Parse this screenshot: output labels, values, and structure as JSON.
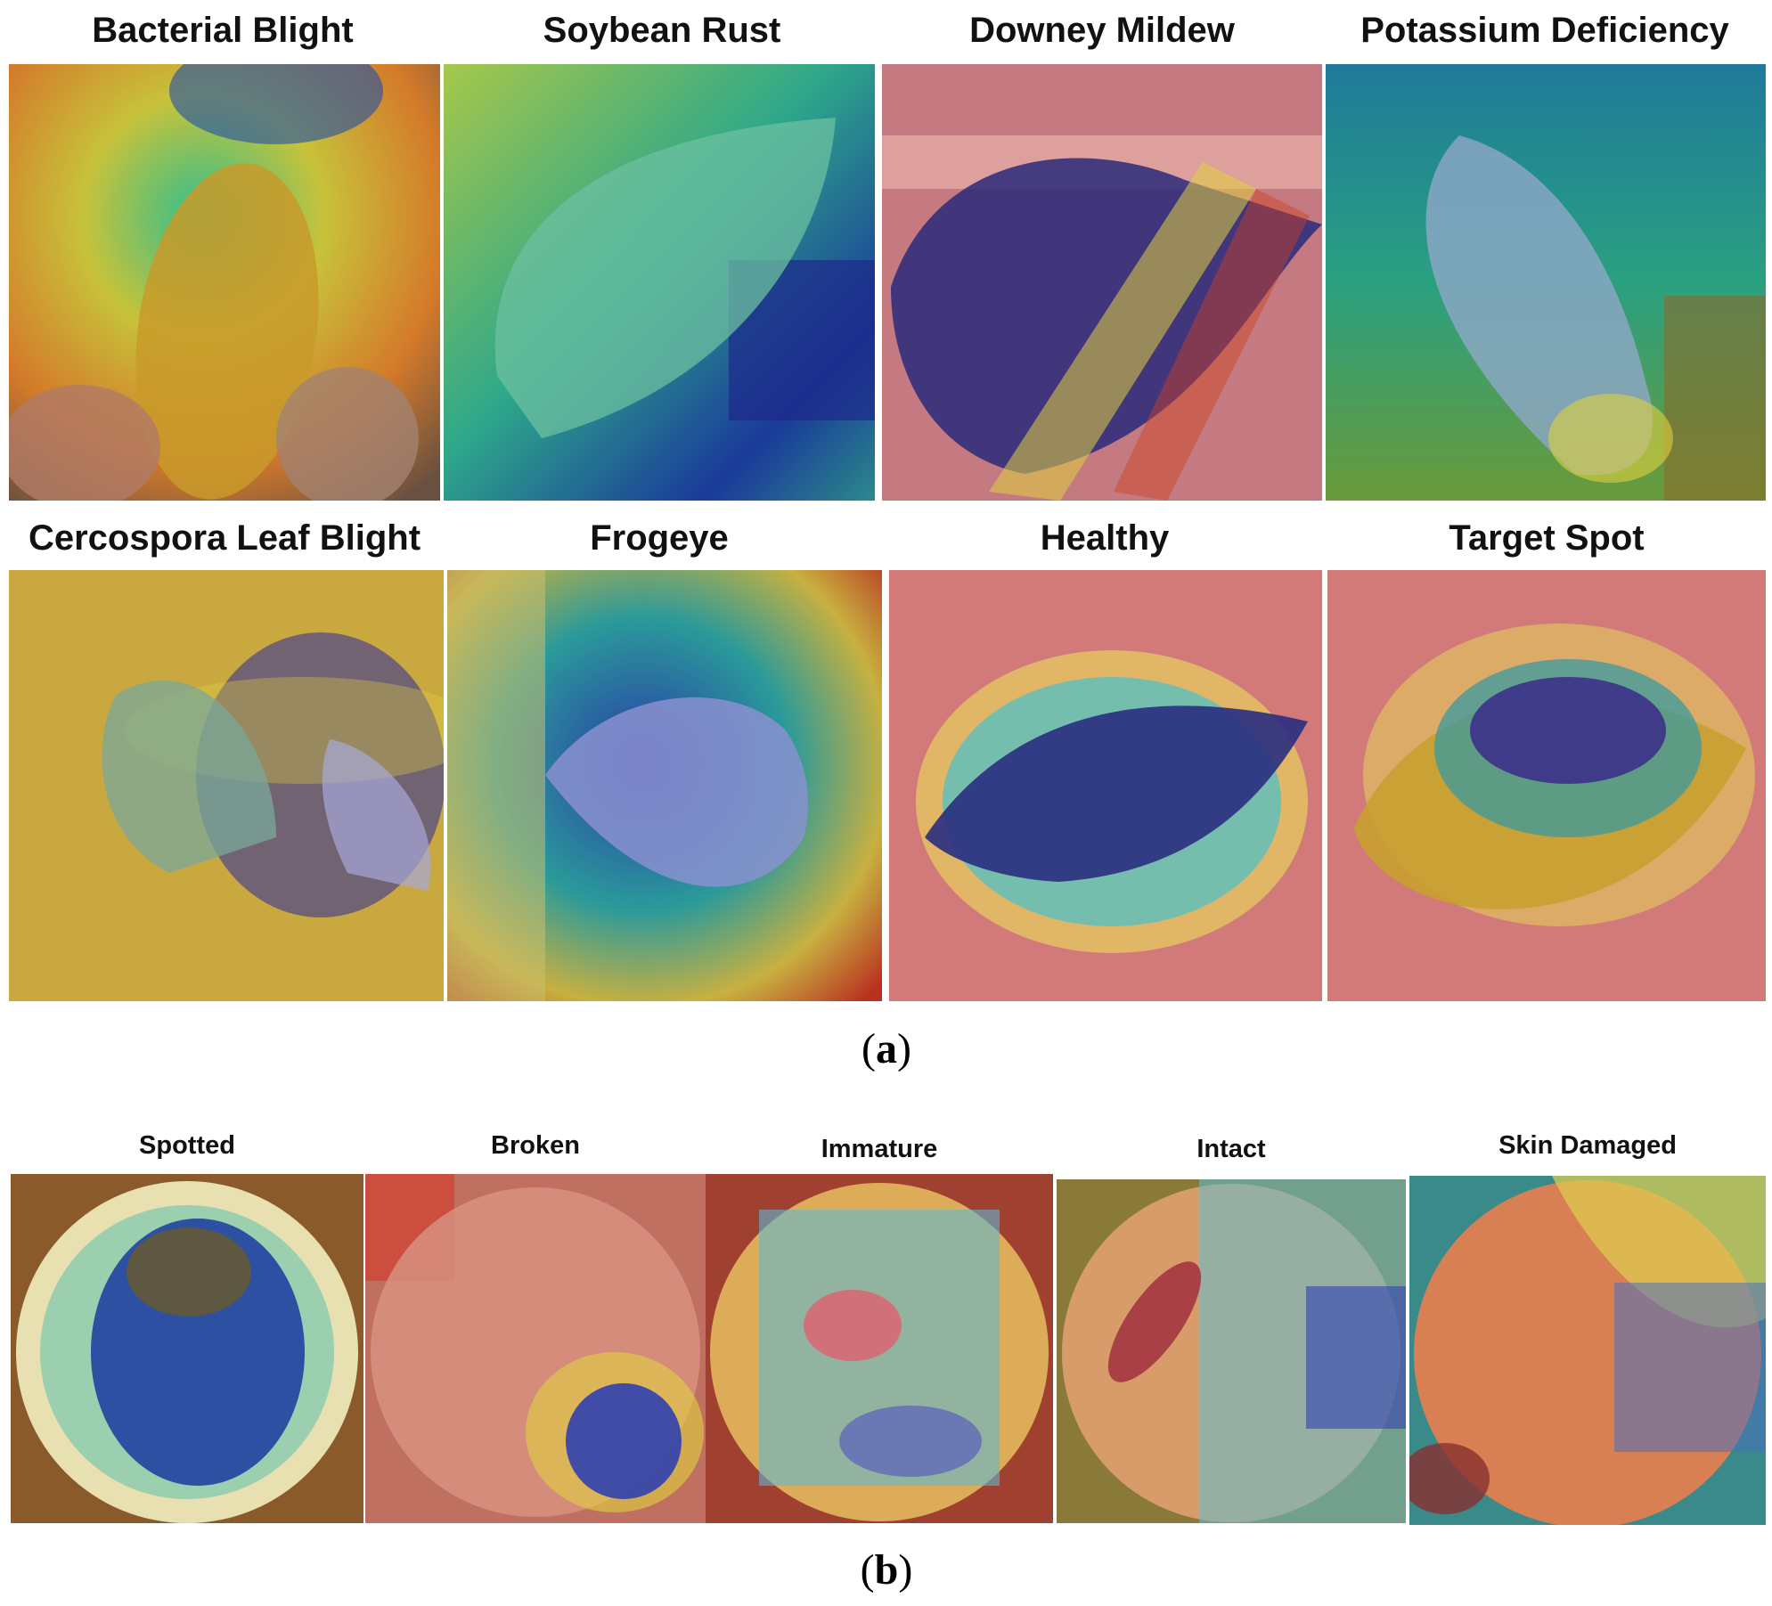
{
  "figure": {
    "section_a": {
      "caption_open": "(",
      "caption_letter": "a",
      "caption_close": ")",
      "panels": [
        {
          "label": "Bacterial Blight"
        },
        {
          "label": "Soybean Rust"
        },
        {
          "label": "Downey Mildew"
        },
        {
          "label": "Potassium Deficiency"
        },
        {
          "label": "Cercospora Leaf Blight"
        },
        {
          "label": "Frogeye"
        },
        {
          "label": "Healthy"
        },
        {
          "label": "Target Spot"
        }
      ]
    },
    "section_b": {
      "caption_open": "(",
      "caption_letter": "b",
      "caption_close": ")",
      "panels": [
        {
          "label": "Spotted"
        },
        {
          "label": "Broken"
        },
        {
          "label": "Immature"
        },
        {
          "label": "Intact"
        },
        {
          "label": "Skin Damaged"
        }
      ]
    }
  }
}
